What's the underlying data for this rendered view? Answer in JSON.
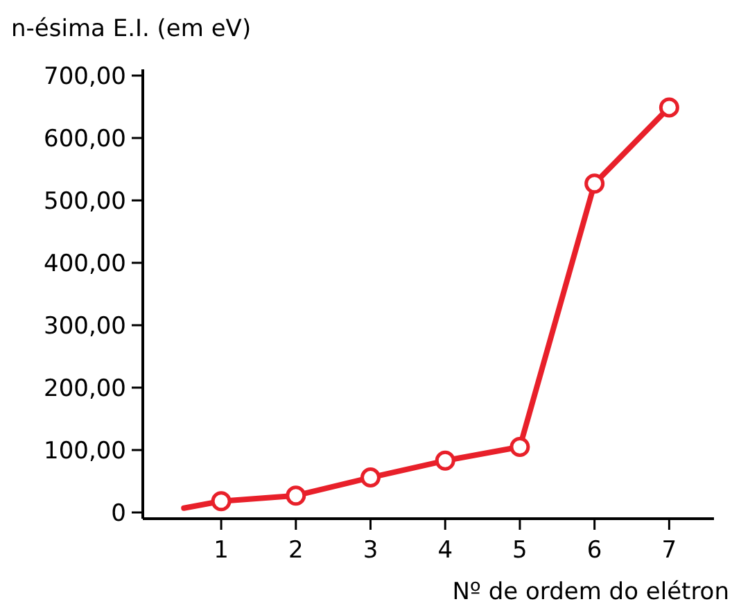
{
  "chart_data": {
    "type": "line",
    "xlabel": "Nº de ordem do elétron",
    "ylabel": "n-ésima E.I. (em eV)",
    "xlim": [
      -0.05,
      7.6
    ],
    "xticks": [
      1,
      2,
      3,
      4,
      5,
      6,
      7
    ],
    "ylim": [
      -10,
      710
    ],
    "yticks": [
      0,
      {
        "value": 100,
        "label": "100,00"
      },
      {
        "value": 200,
        "label": "200,00"
      },
      {
        "value": 300,
        "label": "300,00"
      },
      {
        "value": 400,
        "label": "400,00"
      },
      {
        "value": 500,
        "label": "500,00"
      },
      {
        "value": 600,
        "label": "600,00"
      },
      {
        "value": 700,
        "label": "700,00"
      }
    ],
    "grid": false,
    "line_style": "solid",
    "series": [
      {
        "color": "#e8202a",
        "x": [
          0.5,
          1
        ],
        "values": [
          7,
          18
        ]
      },
      {
        "color": "#e8202a",
        "marker": "circle",
        "x": [
          1,
          2,
          3,
          4,
          5,
          6,
          7
        ],
        "values": [
          18,
          27,
          56,
          83,
          105,
          527,
          649
        ]
      }
    ]
  }
}
